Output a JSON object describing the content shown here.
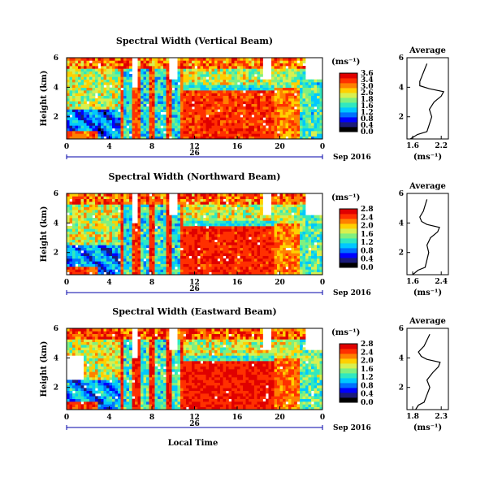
{
  "chart_data": {
    "type": "heatmap",
    "panels": [
      {
        "title": "Spectral Width (Vertical Beam)",
        "ylabel": "Height (km)",
        "yticks": [
          "6",
          "4",
          "2"
        ],
        "xticks": [
          "0",
          "4",
          "8",
          "12",
          "16",
          "20",
          "0"
        ],
        "ylim_km": [
          0.5,
          6
        ],
        "xlim_hours": [
          0,
          24
        ],
        "date_label": "26",
        "month_label": "Sep 2016",
        "colorbar_unit": "(ms⁻¹)",
        "colorbar_ticks": [
          "3.6",
          "3.4",
          "3.0",
          "2.6",
          "1.8",
          "1.6",
          "1.2",
          "0.8",
          "0.4",
          "0.0"
        ],
        "avg_title": "Average",
        "avg_xlabel": "(ms⁻¹)",
        "avg_xticks": [
          "1.6",
          "2.2"
        ],
        "avg_yticks": [
          "6",
          "4",
          "2"
        ],
        "avg_profile": {
          "height_km": [
            0.5,
            0.8,
            1.0,
            1.5,
            2.0,
            2.5,
            3.0,
            3.4,
            3.7,
            3.9,
            4.1,
            4.4,
            4.8,
            5.2,
            5.6
          ],
          "width_ms": [
            1.55,
            1.7,
            1.9,
            1.95,
            2.0,
            1.95,
            2.05,
            2.2,
            2.25,
            1.95,
            1.75,
            1.75,
            1.8,
            1.85,
            1.9
          ]
        }
      },
      {
        "title": "Spectral Width (Northward Beam)",
        "ylabel": "Height (km)",
        "yticks": [
          "6",
          "4",
          "2"
        ],
        "xticks": [
          "0",
          "4",
          "8",
          "12",
          "16",
          "20",
          "0"
        ],
        "ylim_km": [
          0.5,
          6
        ],
        "xlim_hours": [
          0,
          24
        ],
        "date_label": "26",
        "month_label": "Sep 2016",
        "colorbar_unit": "(ms⁻¹)",
        "colorbar_ticks": [
          "2.8",
          "2.4",
          "2.0",
          "1.6",
          "1.2",
          "0.8",
          "0.4",
          "0.0"
        ],
        "avg_title": "Average",
        "avg_xlabel": "(ms⁻¹)",
        "avg_xticks": [
          "1.6",
          "2.4"
        ],
        "avg_yticks": [
          "6",
          "4",
          "2"
        ],
        "avg_profile": {
          "height_km": [
            0.5,
            0.8,
            1.0,
            1.5,
            2.0,
            2.5,
            3.0,
            3.4,
            3.7,
            3.9,
            4.1,
            4.4,
            4.8,
            5.2,
            5.6
          ],
          "width_ms": [
            1.6,
            1.75,
            1.95,
            2.0,
            2.05,
            2.0,
            2.1,
            2.3,
            2.35,
            2.0,
            1.85,
            1.8,
            1.9,
            1.95,
            2.0
          ]
        }
      },
      {
        "title": "Spectral Width (Eastward Beam)",
        "ylabel": "Height (km)",
        "yticks": [
          "6",
          "4",
          "2"
        ],
        "xticks": [
          "0",
          "4",
          "8",
          "12",
          "16",
          "20",
          "0"
        ],
        "ylim_km": [
          0.5,
          6
        ],
        "xlim_hours": [
          0,
          24
        ],
        "date_label": "26",
        "month_label": "Sep 2016",
        "colorbar_unit": "(ms⁻¹)",
        "colorbar_ticks": [
          "2.8",
          "2.4",
          "2.0",
          "1.6",
          "1.2",
          "0.8",
          "0.4",
          "0.0"
        ],
        "avg_title": "Average",
        "avg_xlabel": "(ms⁻¹)",
        "avg_xticks": [
          "1.8",
          "2.3"
        ],
        "avg_yticks": [
          "6",
          "4",
          "2"
        ],
        "avg_profile": {
          "height_km": [
            0.5,
            0.8,
            1.0,
            1.5,
            2.0,
            2.5,
            3.0,
            3.4,
            3.7,
            3.9,
            4.1,
            4.4,
            4.8,
            5.2,
            5.6
          ],
          "width_ms": [
            1.85,
            1.9,
            2.0,
            2.05,
            2.1,
            2.05,
            2.15,
            2.25,
            2.28,
            2.05,
            1.95,
            1.9,
            2.0,
            2.05,
            2.1
          ]
        }
      }
    ],
    "shared_xlabel": "Local Time",
    "colormap": [
      "#000000",
      "#1a1a7a",
      "#0000ff",
      "#0070ff",
      "#00c8ff",
      "#30e8c0",
      "#80f080",
      "#d8f050",
      "#ffd000",
      "#ff8000",
      "#ff3000",
      "#e00000"
    ]
  }
}
